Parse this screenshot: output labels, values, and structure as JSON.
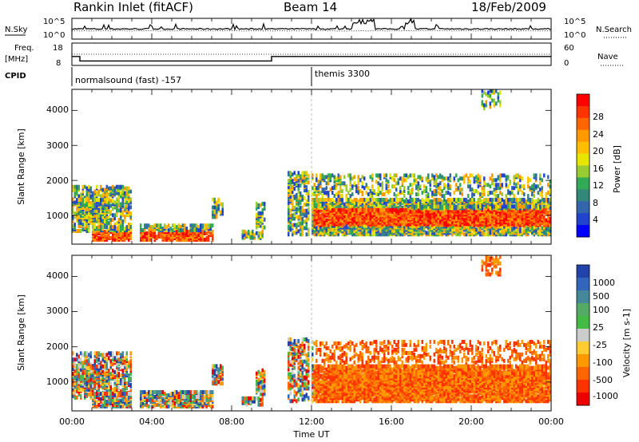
{
  "header": {
    "station": "Rankin Inlet (fitACF)",
    "beam": "Beam 14",
    "date": "18/Feb/2009"
  },
  "left_labels": {
    "nsky": "N.Sky",
    "freq": "Freq.",
    "mhz": "[MHz]",
    "cpid": "CPID"
  },
  "right_labels": {
    "nsearch": "N.Search",
    "nave": "Nave"
  },
  "cpid_segments": [
    {
      "label": "normalsound (fast) -157",
      "start_hour": 0
    },
    {
      "label": "themis 3300",
      "start_hour": 12.0
    }
  ],
  "chart_data": [
    {
      "type": "line",
      "name": "noise",
      "ylabels_left": [
        "10^5",
        "10^0"
      ],
      "ylabels_right": [
        "10^5",
        "10^0"
      ],
      "description_series": [
        "N.Sky",
        "N.Search"
      ]
    },
    {
      "type": "line",
      "name": "frequency",
      "yticks_left": [
        "18",
        "8"
      ],
      "yticks_right": [
        "60",
        "0"
      ],
      "freq_segments": [
        {
          "start": 0.0,
          "end": 0.4,
          "mhz": 12.0
        },
        {
          "start": 0.4,
          "end": 10.0,
          "mhz": 10.0
        },
        {
          "start": 10.0,
          "end": 10.5,
          "mhz": 12.0
        },
        {
          "start": 10.5,
          "end": 24.0,
          "mhz": 12.0
        }
      ]
    },
    {
      "type": "heatmap",
      "name": "power",
      "ylabel": "Slant Range [km]",
      "yticks": [
        "4000",
        "3000",
        "2000",
        "1000"
      ],
      "ylim": [
        180,
        4600
      ],
      "colorbar_label": "Power [dB]",
      "colorbar_ticks": [
        "28",
        "24",
        "20",
        "16",
        "12",
        "8",
        "4"
      ]
    },
    {
      "type": "heatmap",
      "name": "velocity",
      "ylabel": "Slant Range [km]",
      "yticks": [
        "4000",
        "3000",
        "2000",
        "1000"
      ],
      "ylim": [
        180,
        4600
      ],
      "colorbar_label": "Velocity [m s-1]",
      "colorbar_ticks": [
        "1000",
        "500",
        "100",
        "25",
        "-25",
        "-100",
        "-500",
        "-1000"
      ]
    }
  ],
  "xaxis": {
    "xlabel": "Time UT",
    "ticks": [
      "00:00",
      "04:00",
      "08:00",
      "12:00",
      "16:00",
      "20:00",
      "00:00"
    ]
  }
}
